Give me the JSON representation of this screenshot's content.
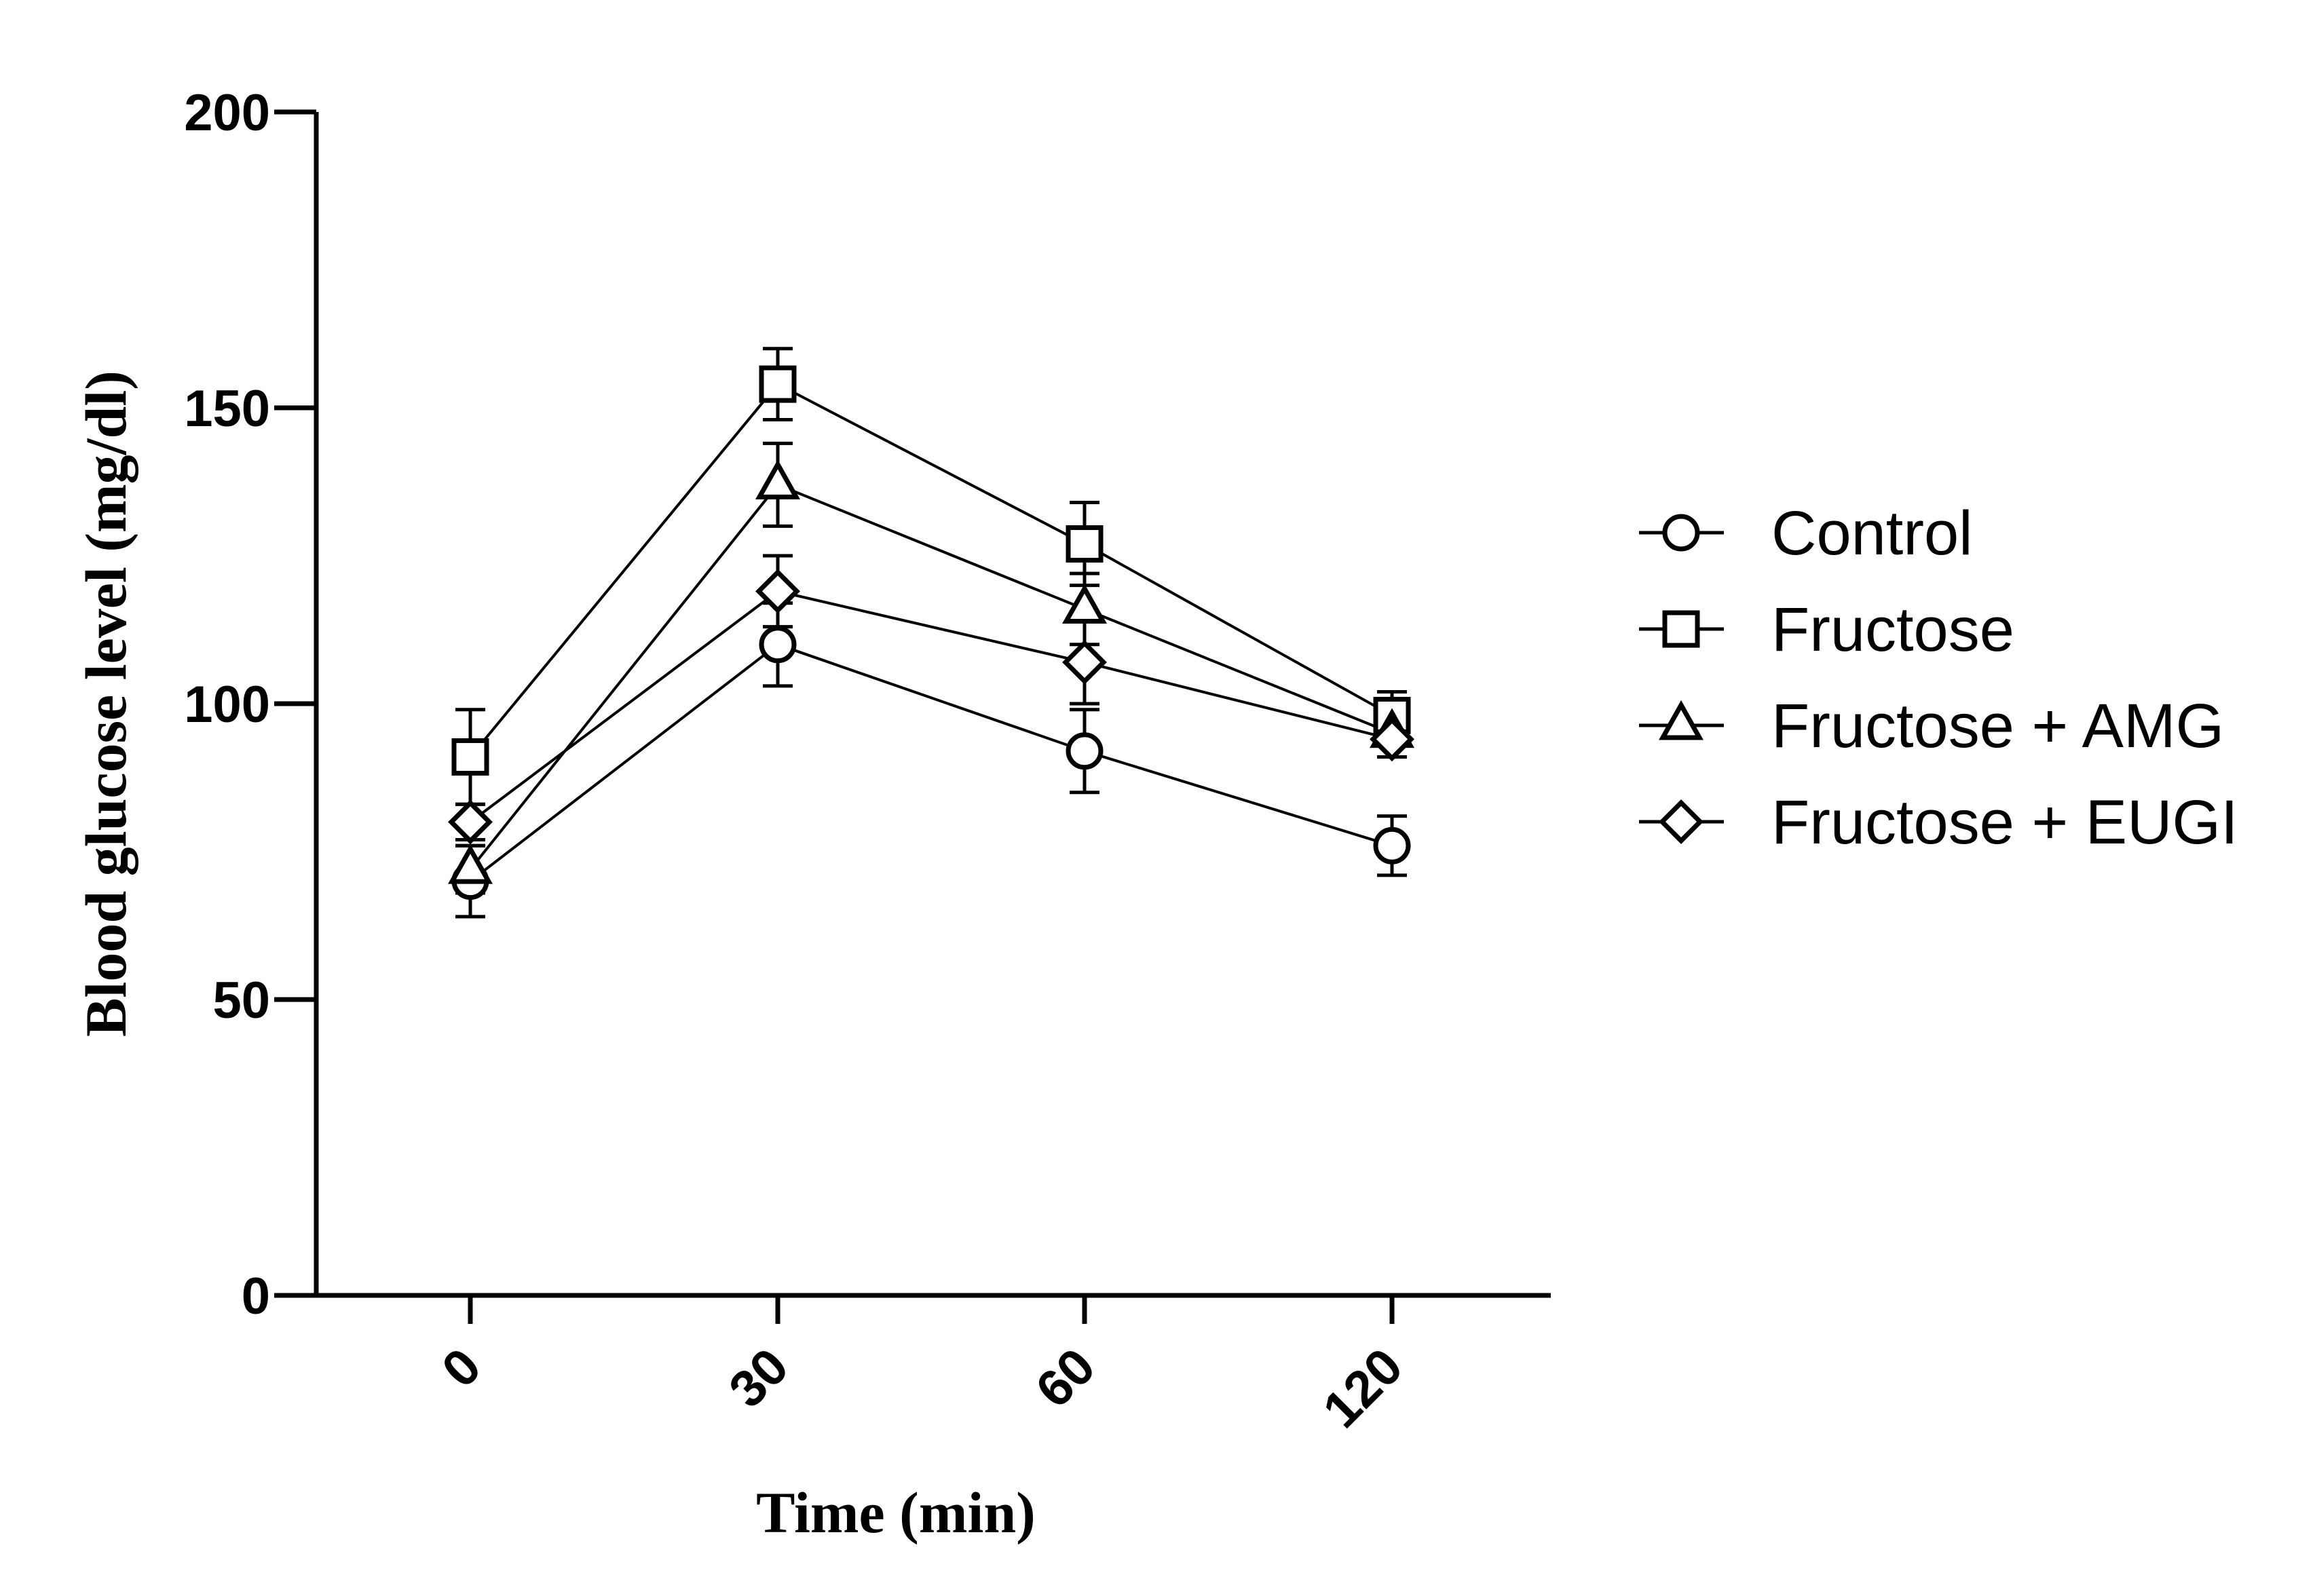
{
  "chart_data": {
    "type": "line",
    "title": "",
    "xlabel": "Time (min)",
    "ylabel": "Blood glucose level (mg/dl)",
    "categories": [
      "0",
      "30",
      "60",
      "120"
    ],
    "ylim": [
      0,
      200
    ],
    "yticks": [
      0,
      50,
      100,
      150,
      200
    ],
    "error_bars": true,
    "legend_position": "right",
    "grid": false,
    "series": [
      {
        "name": "Control",
        "marker": "circle",
        "values": [
          70,
          110,
          92,
          76
        ],
        "errors": [
          6,
          7,
          7,
          5
        ]
      },
      {
        "name": "Fructose",
        "marker": "square",
        "values": [
          91,
          154,
          127,
          98
        ],
        "errors": [
          8,
          6,
          7,
          4
        ]
      },
      {
        "name": "Fructose + AMG",
        "marker": "triangle",
        "values": [
          72,
          137,
          116,
          95
        ],
        "errors": [
          4,
          7,
          6,
          4
        ]
      },
      {
        "name": "Fructose + EUGI",
        "marker": "diamond",
        "values": [
          80,
          119,
          107,
          94
        ],
        "errors": [
          3,
          6,
          7,
          3
        ]
      }
    ]
  }
}
